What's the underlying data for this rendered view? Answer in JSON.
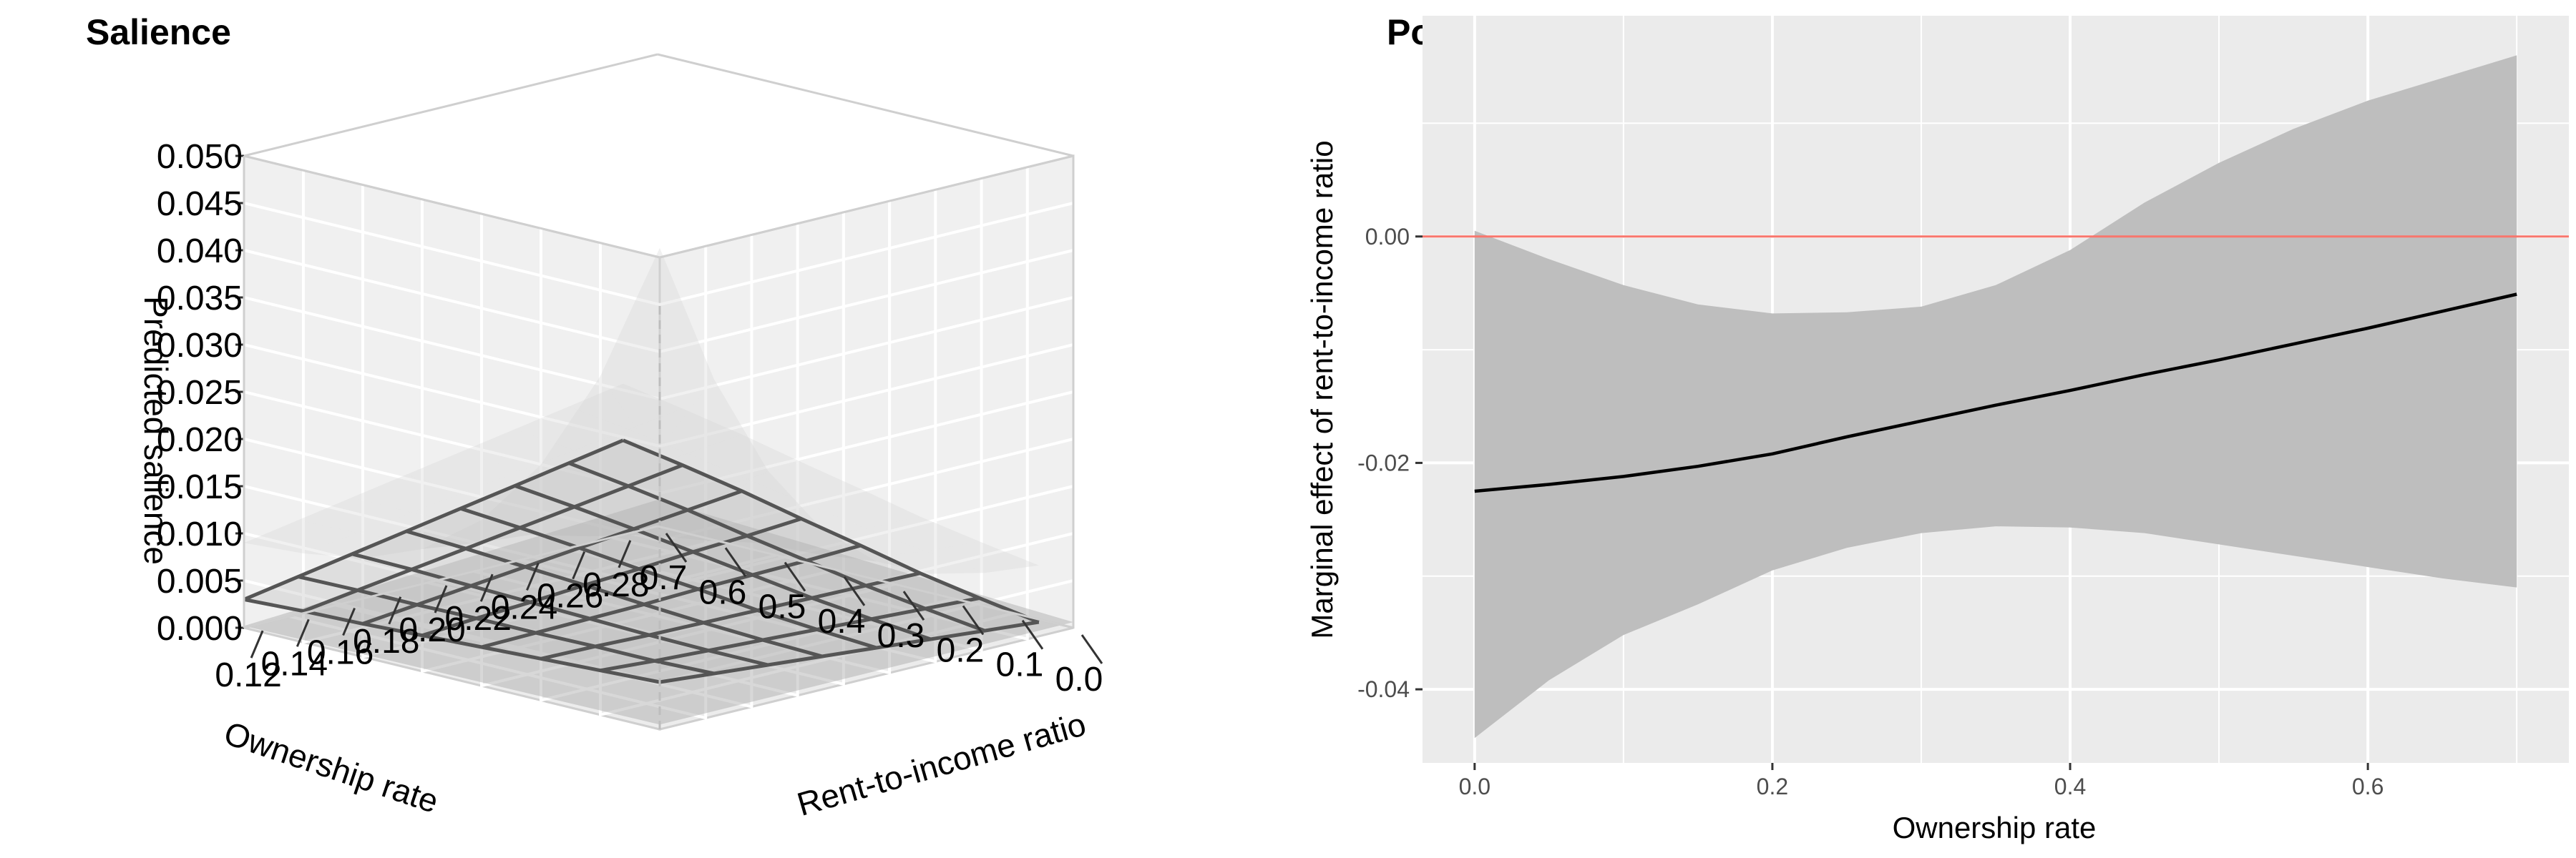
{
  "chart_data": [
    {
      "type": "surface3d",
      "title": "Salience",
      "xlabel": "Ownership rate",
      "ylabel": "Rent-to-income ratio",
      "zlabel": "Predicted salience",
      "x_ticks": [
        "0.0",
        "0.1",
        "0.2",
        "0.3",
        "0.4",
        "0.5",
        "0.6",
        "0.7"
      ],
      "y_ticks": [
        "0.12",
        "0.14",
        "0.16",
        "0.18",
        "0.20",
        "0.22",
        "0.24",
        "0.26",
        "0.28"
      ],
      "z_ticks": [
        "0.000",
        "0.005",
        "0.010",
        "0.015",
        "0.020",
        "0.025",
        "0.030",
        "0.035",
        "0.040",
        "0.045",
        "0.050"
      ],
      "xlim": [
        0,
        0.7
      ],
      "ylim": [
        0.11,
        0.29
      ],
      "zlim": [
        0,
        0.05
      ],
      "grid": true,
      "surface": {
        "x": [
          0.0,
          0.1,
          0.2,
          0.3,
          0.4,
          0.5,
          0.6,
          0.7
        ],
        "y": [
          0.11,
          0.1336,
          0.1571,
          0.1807,
          0.2043,
          0.2279,
          0.2514,
          0.275
        ],
        "z": [
          [
            0.005,
            0.0047,
            0.0044,
            0.0041,
            0.0038,
            0.0035,
            0.0033,
            0.003
          ],
          [
            0.0045,
            0.0043,
            0.0043,
            0.0042,
            0.0042,
            0.0041,
            0.0041,
            0.004
          ],
          [
            0.004,
            0.004,
            0.0041,
            0.0043,
            0.0045,
            0.0047,
            0.0049,
            0.005
          ],
          [
            0.0035,
            0.0037,
            0.004,
            0.0044,
            0.0049,
            0.0053,
            0.0057,
            0.006
          ],
          [
            0.003,
            0.0034,
            0.0039,
            0.0046,
            0.0052,
            0.0059,
            0.0065,
            0.007
          ],
          [
            0.0025,
            0.0031,
            0.0038,
            0.0047,
            0.0056,
            0.0065,
            0.0073,
            0.008
          ],
          [
            0.002,
            0.0028,
            0.0037,
            0.0048,
            0.0059,
            0.0071,
            0.0081,
            0.009
          ],
          [
            0.0015,
            0.0025,
            0.0036,
            0.005,
            0.0063,
            0.0077,
            0.0089,
            0.01
          ]
        ]
      },
      "upper_peak_z": 0.045
    },
    {
      "type": "line",
      "title": "Positions",
      "xlabel": "Ownership rate",
      "ylabel": "Marginal effect of rent-to-income ratio",
      "xlim": [
        -0.035,
        0.735
      ],
      "ylim": [
        -0.0465,
        0.0195
      ],
      "x_ticks": [
        "0.0",
        "0.2",
        "0.4",
        "0.6"
      ],
      "y_ticks": [
        "-0.04",
        "-0.02",
        "0.00"
      ],
      "reference_line": {
        "y": 0.0,
        "color": "#f8766d"
      },
      "x": [
        0.0,
        0.05,
        0.1,
        0.15,
        0.2,
        0.25,
        0.3,
        0.35,
        0.4,
        0.45,
        0.5,
        0.55,
        0.6,
        0.65,
        0.7
      ],
      "series": [
        {
          "values": [
            -0.0225,
            -0.0219,
            -0.0212,
            -0.0203,
            -0.0192,
            -0.0177,
            -0.0163,
            -0.0149,
            -0.0136,
            -0.0122,
            -0.0109,
            -0.0095,
            -0.0081,
            -0.0066,
            -0.0051
          ],
          "lower": [
            -0.0443,
            -0.0392,
            -0.0352,
            -0.0325,
            -0.0295,
            -0.0275,
            -0.0262,
            -0.0256,
            -0.0257,
            -0.0262,
            -0.0272,
            -0.0282,
            -0.0292,
            -0.0302,
            -0.031
          ],
          "upper": [
            0.0005,
            -0.002,
            -0.0043,
            -0.006,
            -0.0068,
            -0.0067,
            -0.0062,
            -0.0043,
            -0.0012,
            0.003,
            0.0065,
            0.0095,
            0.012,
            0.014,
            0.016
          ]
        }
      ],
      "colors": {
        "line": "#000000",
        "ribbon": "#bebebe",
        "panel": "#ebebeb",
        "grid": "#ffffff"
      },
      "grid": true
    }
  ]
}
